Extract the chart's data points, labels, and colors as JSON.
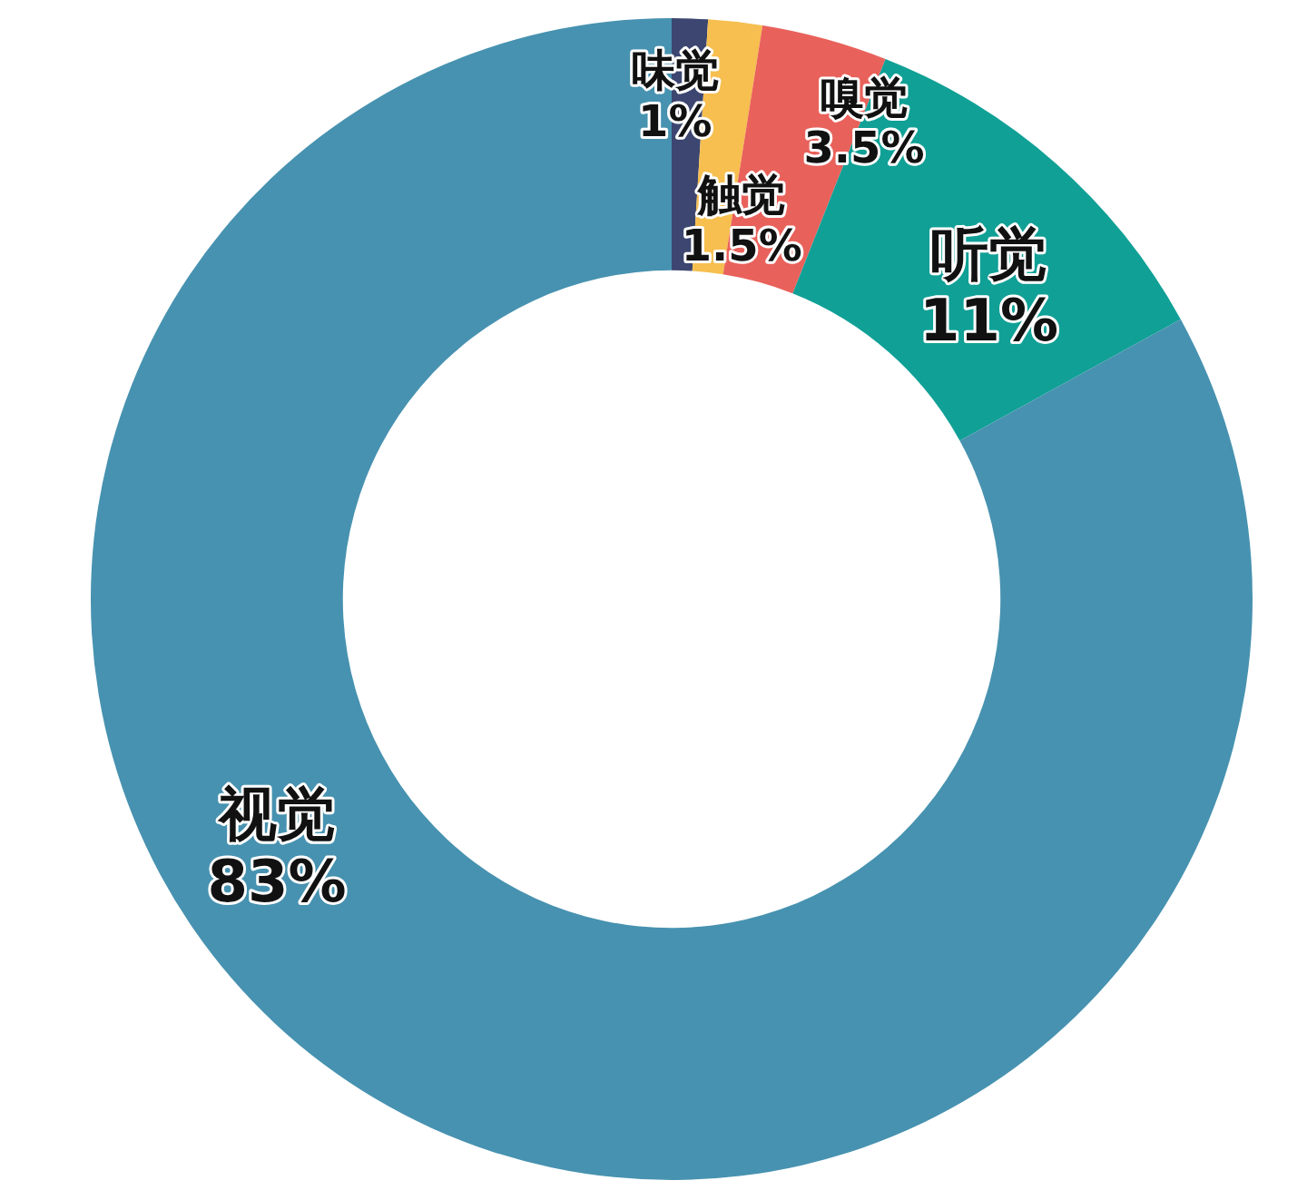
{
  "chart_data": {
    "type": "donut",
    "categories": [
      "味觉",
      "触觉",
      "嗅觉",
      "听觉",
      "视觉"
    ],
    "values": [
      1,
      1.5,
      3.5,
      11,
      83
    ],
    "colors": [
      "#3c4670",
      "#f6bf4f",
      "#e9615b",
      "#10a096",
      "#4792b0"
    ],
    "value_labels": [
      "1%",
      "1.5%",
      "3.5%",
      "11%",
      "83%"
    ]
  }
}
